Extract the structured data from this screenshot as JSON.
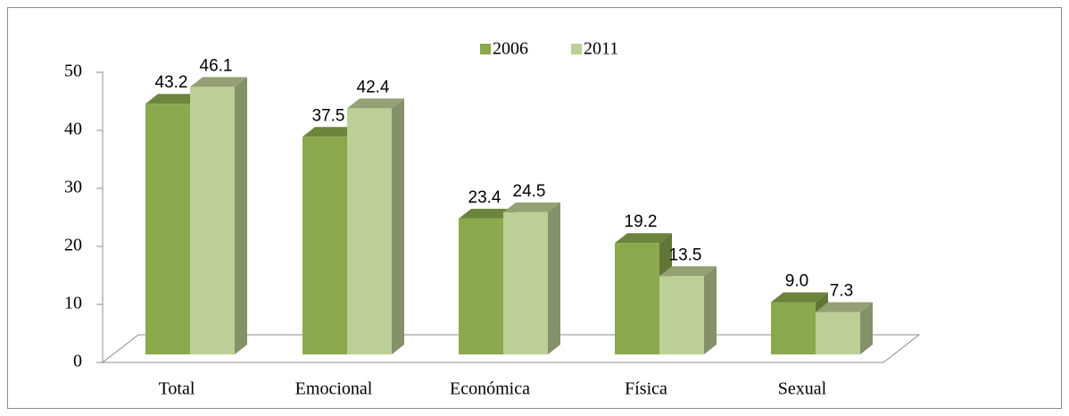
{
  "chart_data": {
    "type": "bar3d",
    "categories": [
      "Total",
      "Emocional",
      "Económica",
      "Física",
      "Sexual"
    ],
    "series": [
      {
        "name": "2006",
        "color": "#8aa94d",
        "values": [
          43.2,
          37.5,
          23.4,
          19.2,
          9.0
        ],
        "value_labels": [
          "43.2",
          "37.5",
          "23.4",
          "19.2",
          "9.0"
        ]
      },
      {
        "name": "2011",
        "color": "#bccf96",
        "values": [
          46.1,
          42.4,
          24.5,
          13.5,
          7.3
        ],
        "value_labels": [
          "46.1",
          "42.4",
          "24.5",
          "13.5",
          "7.3"
        ]
      }
    ],
    "ylim": [
      0,
      50
    ],
    "yticks": [
      0,
      10,
      20,
      30,
      40,
      50
    ],
    "legend": "top"
  }
}
